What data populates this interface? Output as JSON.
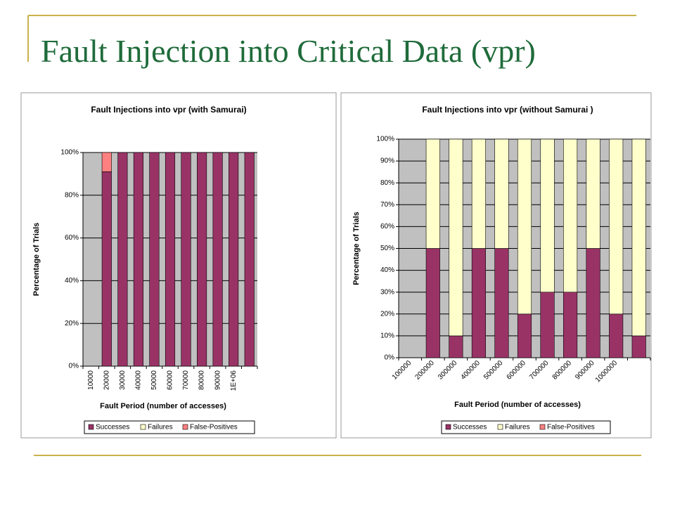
{
  "title": "Fault Injection into Critical Data (vpr)",
  "chart_data": [
    {
      "type": "stacked_bar",
      "title": "Fault Injections into vpr (with Samurai)",
      "x_label": "Fault Period (number of accesses)",
      "y_label": "Percentage of Trials",
      "categories": [
        "10000",
        "20000",
        "30000",
        "40000",
        "50000",
        "60000",
        "70000",
        "80000",
        "90000",
        "1E+06",
        null
      ],
      "series": [
        {
          "name": "Successes",
          "color": "#993366",
          "values": [
            0,
            91,
            100,
            100,
            100,
            100,
            100,
            100,
            100,
            100,
            100
          ]
        },
        {
          "name": "Failures",
          "color": "#ffffcc",
          "values": [
            0,
            0,
            0,
            0,
            0,
            0,
            0,
            0,
            0,
            0,
            0
          ]
        },
        {
          "name": "False-Positives",
          "color": "#ff8080",
          "values": [
            0,
            9,
            0,
            0,
            0,
            0,
            0,
            0,
            0,
            0,
            0
          ]
        }
      ],
      "ylim": [
        0,
        100
      ],
      "yticks": [
        {
          "value": 0,
          "label": "0%"
        },
        {
          "value": 20,
          "label": "20%"
        },
        {
          "value": 40,
          "label": "40%"
        },
        {
          "value": 60,
          "label": "60%"
        },
        {
          "value": 80,
          "label": "80%"
        },
        {
          "value": 100,
          "label": "100%"
        }
      ],
      "grid": true,
      "legend": "bottom",
      "tick_rotation": -90
    },
    {
      "type": "stacked_bar",
      "title": "Fault Injections into vpr (without Samurai )",
      "x_label": "Fault Period (number of accesses)",
      "y_label": "Percentage of Trials",
      "categories": [
        "100000",
        "200000",
        "300000",
        "400000",
        "500000",
        "600000",
        "700000",
        "800000",
        "900000",
        "1000000",
        null
      ],
      "series": [
        {
          "name": "Successes",
          "color": "#993366",
          "values": [
            0,
            50,
            10,
            50,
            50,
            20,
            30,
            30,
            50,
            20,
            10
          ]
        },
        {
          "name": "Failures",
          "color": "#ffffcc",
          "values": [
            0,
            50,
            90,
            50,
            50,
            80,
            70,
            70,
            50,
            80,
            90
          ]
        },
        {
          "name": "False-Positives",
          "color": "#ff8080",
          "values": [
            0,
            0,
            0,
            0,
            0,
            0,
            0,
            0,
            0,
            0,
            0
          ]
        }
      ],
      "ylim": [
        0,
        100
      ],
      "yticks": [
        {
          "value": 0,
          "label": "0%"
        },
        {
          "value": 10,
          "label": "10%"
        },
        {
          "value": 20,
          "label": "20%"
        },
        {
          "value": 30,
          "label": "30%"
        },
        {
          "value": 40,
          "label": "40%"
        },
        {
          "value": 50,
          "label": "50%"
        },
        {
          "value": 60,
          "label": "60%"
        },
        {
          "value": 70,
          "label": "70%"
        },
        {
          "value": 80,
          "label": "80%"
        },
        {
          "value": 90,
          "label": "90%"
        },
        {
          "value": 100,
          "label": "100%"
        }
      ],
      "grid": true,
      "legend": "bottom",
      "tick_rotation": -45
    }
  ]
}
